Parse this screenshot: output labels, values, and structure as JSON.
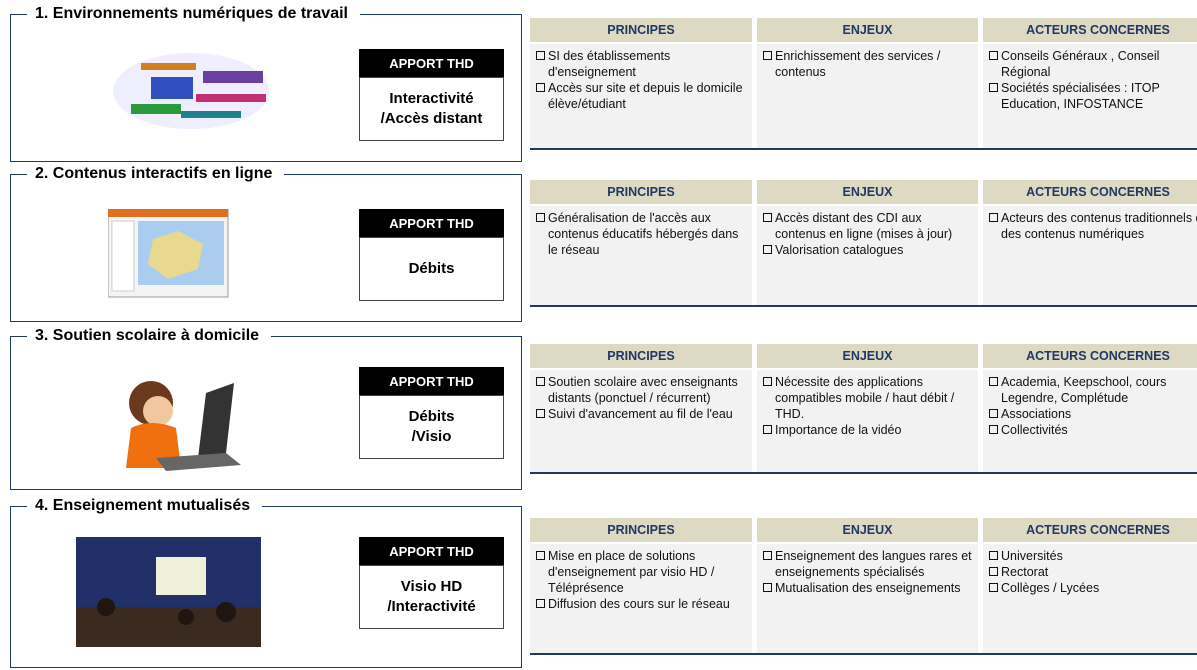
{
  "sections": [
    {
      "title": "1. Environnements numériques de travail",
      "apport_label": "APPORT THD",
      "apport_lines": [
        "Interactivité",
        "/Accès distant"
      ],
      "table": {
        "headers": [
          "PRINCIPES",
          "ENJEUX",
          "ACTEURS CONCERNES"
        ],
        "cells": [
          [
            "SI des établissements d'enseignement",
            "Accès sur site et depuis le domicile élève/étudiant"
          ],
          [
            "Enrichissement des services / contenus"
          ],
          [
            "Conseils Généraux , Conseil Régional",
            "Sociétés spécialisées : ITOP Education, INFOSTANCE"
          ]
        ]
      }
    },
    {
      "title": "2. Contenus interactifs en ligne",
      "apport_label": "APPORT THD",
      "apport_lines": [
        "Débits"
      ],
      "table": {
        "headers": [
          "PRINCIPES",
          "ENJEUX",
          "ACTEURS CONCERNES"
        ],
        "cells": [
          [
            "Généralisation de l'accès aux contenus éducatifs hébergés dans le réseau"
          ],
          [
            "Accès distant des CDI aux contenus en ligne (mises à jour)",
            "Valorisation catalogues"
          ],
          [
            "Acteurs des contenus traditionnels et  des contenus numériques"
          ]
        ]
      }
    },
    {
      "title": "3. Soutien scolaire à domicile",
      "apport_label": "APPORT THD",
      "apport_lines": [
        "Débits",
        "/Visio"
      ],
      "table": {
        "headers": [
          "PRINCIPES",
          "ENJEUX",
          "ACTEURS CONCERNES"
        ],
        "cells": [
          [
            "Soutien scolaire avec enseignants distants (ponctuel / récurrent)",
            "Suivi d'avancement au fil de l'eau"
          ],
          [
            "Nécessite des applications compatibles mobile / haut débit / THD.",
            "Importance de la vidéo"
          ],
          [
            "Academia, Keepschool, cours Legendre, Complétude",
            "Associations",
            "Collectivités"
          ]
        ]
      }
    },
    {
      "title": "4. Enseignement mutualisés",
      "apport_label": "APPORT THD",
      "apport_lines": [
        "Visio HD",
        "/Interactivité"
      ],
      "table": {
        "headers": [
          "PRINCIPES",
          "ENJEUX",
          "ACTEURS CONCERNES"
        ],
        "cells": [
          [
            "Mise en place de solutions d'enseignement par visio HD / Téléprésence",
            "Diffusion des cours sur le réseau"
          ],
          [
            "Enseignement des langues rares et enseignements spécialisés",
            "Mutualisation des enseignements"
          ],
          [
            "Universités",
            "Rectorat",
            "Collèges / Lycées"
          ]
        ]
      }
    }
  ]
}
